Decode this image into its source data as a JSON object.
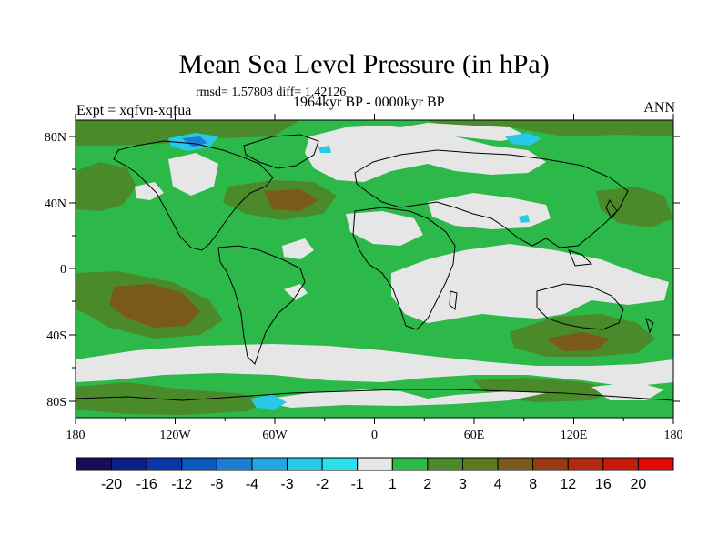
{
  "title": "Mean Sea Level Pressure (in hPa)",
  "stats": "rmsd= 1.57808 diff= 1.42126",
  "experiment": "Expt = xqfvn-xqfua",
  "period": "1964kyr BP - 0000kyr BP",
  "season": "ANN",
  "x_ticks": [
    "180",
    "120W",
    "60W",
    "0",
    "60E",
    "120E",
    "180"
  ],
  "y_ticks": [
    "80N",
    "40N",
    "0",
    "40S",
    "80S"
  ],
  "colorbar": {
    "labels": [
      "-20",
      "-16",
      "-12",
      "-8",
      "-4",
      "-3",
      "-2",
      "-1",
      "1",
      "2",
      "3",
      "4",
      "8",
      "12",
      "16",
      "20"
    ],
    "colors": [
      "#1a0a5a",
      "#0c1f8a",
      "#0a36a8",
      "#0a58c0",
      "#1a7fd0",
      "#20a6e0",
      "#28c8e8",
      "#2ae0ea",
      "#e6e6e6",
      "#2db84a",
      "#4a8a2a",
      "#5a7a22",
      "#7a5a1a",
      "#9a3a12",
      "#b22a0e",
      "#c81a0a",
      "#e00a06"
    ]
  },
  "colors": {
    "land_sea_base": "#2db84a",
    "near_zero": "#e6e6e6",
    "olive": "#4a8a2a",
    "brown": "#7a5a1a",
    "light_blue": "#28c8e8",
    "mid_blue": "#1a7fd0"
  }
}
